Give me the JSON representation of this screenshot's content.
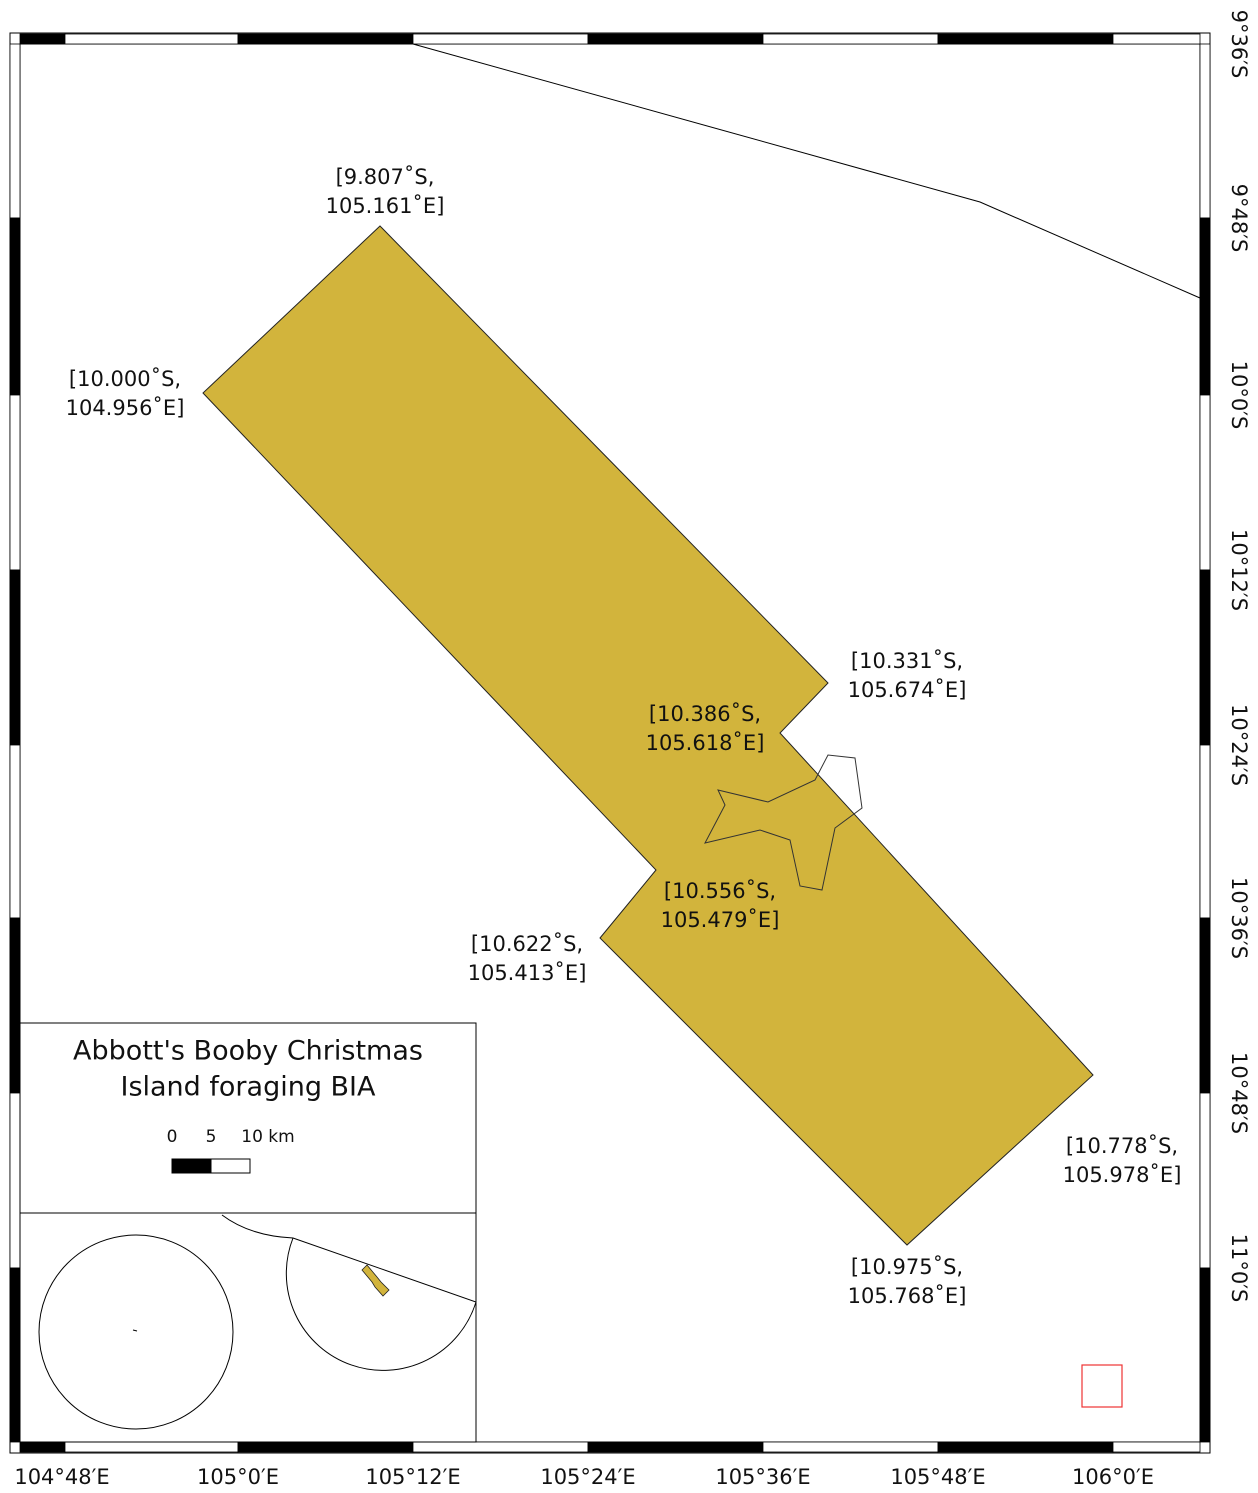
{
  "map": {
    "vertex_labels": [
      [
        "[9.807˚S,",
        "105.161˚E]"
      ],
      [
        "[10.000˚S,",
        "104.956˚E]"
      ],
      [
        "[10.331˚S,",
        "105.674˚E]"
      ],
      [
        "[10.386˚S,",
        "105.618˚E]"
      ],
      [
        "[10.556˚S,",
        "105.479˚E]"
      ],
      [
        "[10.622˚S,",
        "105.413˚E]"
      ],
      [
        "[10.778˚S,",
        "105.978˚E]"
      ],
      [
        "[10.975˚S,",
        "105.768˚E]"
      ]
    ],
    "x_labels": [
      "104°48′E",
      "105°0′E",
      "105°12′E",
      "105°24′E",
      "105°36′E",
      "105°48′E",
      "106°0′E"
    ],
    "y_labels": [
      "9°36′S",
      "9°48′S",
      "10°0′S",
      "10°12′S",
      "10°24′S",
      "10°36′S",
      "10°48′S",
      "11°0′S"
    ]
  },
  "legend": {
    "title": [
      "Abbott's Booby Christmas",
      "Island foraging BIA"
    ],
    "scale_labels": [
      "0",
      "5",
      "10 km"
    ]
  }
}
